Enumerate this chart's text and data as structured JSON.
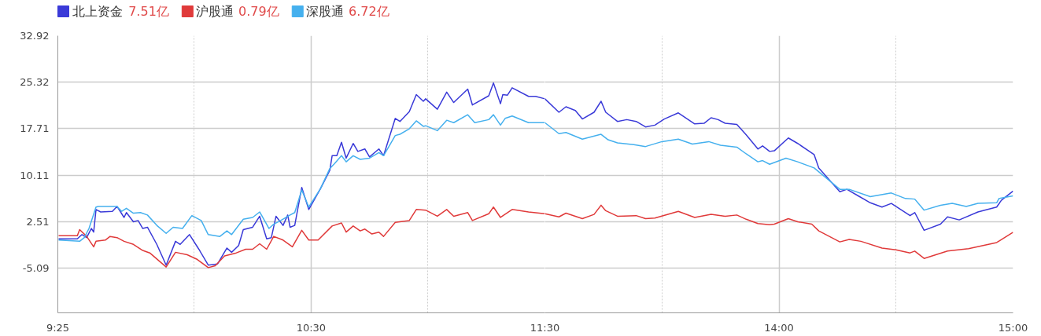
{
  "chart_data": [
    {
      "type": "line",
      "legend": "top left",
      "grid": true,
      "line_style": "solid",
      "annotations": [
        "7.51亿",
        "0.79亿",
        "6.72亿"
      ],
      "xlim": [
        9.4167,
        11.5
      ],
      "ylim": [
        -12.4,
        32.92
      ],
      "xticks": [
        {
          "value": 9.4167,
          "label": "9:25"
        },
        {
          "value": 10,
          "label": null
        },
        {
          "value": 10.5,
          "label": "10:30"
        },
        {
          "value": 11,
          "label": null
        },
        {
          "value": 11.5,
          "label": "11:30"
        }
      ],
      "yticks": [
        32.92,
        25.32,
        17.71,
        10.11,
        2.51,
        -5.09
      ],
      "series": [
        {
          "name": "北上资金",
          "color": "#3a3ad8",
          "x": [
            9.42,
            9.5,
            9.52,
            9.54,
            9.56,
            9.57,
            9.58,
            9.6,
            9.65,
            9.67,
            9.7,
            9.71,
            9.74,
            9.76,
            9.78,
            9.8,
            9.84,
            9.88,
            9.92,
            9.94,
            9.98,
            10.02,
            10.06,
            10.1,
            10.14,
            10.16,
            10.19,
            10.21,
            10.25,
            10.28,
            10.31,
            10.33,
            10.35,
            10.38,
            10.4,
            10.41,
            10.43,
            10.46,
            10.49,
            10.54,
            10.58,
            10.59,
            10.61,
            10.63,
            10.65,
            10.68,
            10.7,
            10.73,
            10.75,
            10.79,
            10.81,
            10.86,
            10.88,
            10.92,
            10.95,
            10.98,
            10.99,
            11.04,
            11.08,
            11.11,
            11.17,
            11.19,
            11.26,
            11.28,
            11.31,
            11.32,
            11.34,
            11.36,
            11.43,
            11.46,
            11.5
          ],
          "values": [
            -0.3,
            -0.3,
            0.4,
            -0.1,
            1.4,
            0.8,
            4.5,
            4.1,
            4.2,
            5.0,
            3.2,
            4.0,
            2.5,
            2.7,
            1.4,
            1.6,
            -1.2,
            -4.6,
            -0.7,
            -1.2,
            0.4,
            -2.0,
            -4.6,
            -4.4,
            -1.8,
            -2.5,
            -1.4,
            1.2,
            1.6,
            3.4,
            -0.3,
            -0.1,
            3.4,
            1.9,
            3.6,
            1.6,
            1.9,
            8.1,
            4.5,
            7.9,
            10.9,
            13.3,
            13.3,
            15.5,
            12.9,
            15.3,
            14.0,
            14.4,
            13.1,
            14.4,
            13.3,
            19.4,
            18.9,
            20.5,
            23.3,
            22.2,
            22.6,
            20.9,
            23.7,
            22.0,
            24.2,
            21.6,
            23.1,
            25.2,
            21.8,
            23.3,
            23.2,
            24.4,
            23.0,
            23.0,
            22.6
          ]
        },
        {
          "name": "沪股通",
          "color": "#e03a3a",
          "x": [
            9.42,
            9.5,
            9.51,
            9.54,
            9.57,
            9.58,
            9.62,
            9.64,
            9.67,
            9.7,
            9.74,
            9.78,
            9.81,
            9.88,
            9.92,
            9.97,
            10.01,
            10.06,
            10.09,
            10.13,
            10.18,
            10.22,
            10.25,
            10.28,
            10.31,
            10.34,
            10.38,
            10.42,
            10.46,
            10.49,
            10.53,
            10.59,
            10.63,
            10.65,
            10.68,
            10.71,
            10.73,
            10.76,
            10.79,
            10.81,
            10.86,
            10.92,
            10.95,
            10.99,
            11.04,
            11.08,
            11.11,
            11.17,
            11.19,
            11.26,
            11.28,
            11.31,
            11.36,
            11.43,
            11.5
          ],
          "values": [
            0.2,
            0.2,
            1.2,
            0.1,
            -1.6,
            -0.7,
            -0.5,
            0.1,
            -0.1,
            -0.7,
            -1.2,
            -2.2,
            -2.6,
            -4.9,
            -2.5,
            -2.9,
            -3.6,
            -5.0,
            -4.7,
            -3.1,
            -2.6,
            -2.0,
            -2.0,
            -1.1,
            -2.0,
            0.1,
            -0.5,
            -1.6,
            1.1,
            -0.5,
            -0.5,
            1.8,
            2.3,
            0.8,
            1.8,
            1.0,
            1.3,
            0.5,
            0.8,
            0.1,
            2.4,
            2.7,
            4.5,
            4.4,
            3.4,
            4.5,
            3.4,
            4.0,
            2.7,
            3.8,
            4.9,
            3.2,
            4.5,
            4.1,
            3.8
          ]
        },
        {
          "name": "深股通",
          "color": "#45b0ee",
          "x": [
            9.42,
            9.51,
            9.53,
            9.55,
            9.58,
            9.59,
            9.67,
            9.69,
            9.71,
            9.74,
            9.77,
            9.8,
            9.84,
            9.88,
            9.91,
            9.95,
            9.99,
            10.03,
            10.06,
            10.11,
            10.14,
            10.16,
            10.21,
            10.25,
            10.28,
            10.32,
            10.34,
            10.37,
            10.41,
            10.43,
            10.46,
            10.49,
            10.54,
            10.58,
            10.6,
            10.63,
            10.65,
            10.68,
            10.71,
            10.75,
            10.79,
            10.81,
            10.86,
            10.88,
            10.92,
            10.95,
            10.98,
            10.99,
            11.04,
            11.08,
            11.11,
            11.17,
            11.2,
            11.26,
            11.28,
            11.31,
            11.33,
            11.36,
            11.43,
            11.5
          ],
          "values": [
            -0.5,
            -0.7,
            -0.1,
            1.4,
            4.9,
            5.0,
            5.0,
            4.2,
            4.7,
            3.9,
            4.0,
            3.6,
            1.9,
            0.6,
            1.6,
            1.4,
            3.5,
            2.7,
            0.4,
            0.1,
            1.0,
            0.4,
            2.9,
            3.2,
            4.1,
            1.4,
            2.1,
            2.7,
            3.6,
            4.0,
            7.7,
            4.9,
            7.9,
            11.2,
            12.0,
            13.3,
            12.3,
            13.3,
            12.7,
            12.9,
            13.8,
            13.3,
            16.6,
            16.8,
            17.7,
            19.0,
            18.1,
            18.2,
            17.4,
            19.1,
            18.7,
            20.0,
            18.7,
            19.2,
            20.0,
            18.3,
            19.4,
            19.8,
            18.7,
            18.7
          ]
        }
      ]
    },
    {
      "type": "line",
      "grid": true,
      "line_style": "solid",
      "tick_labels": "x",
      "xlim": [
        13,
        15
      ],
      "ylim": [
        -12.4,
        32.92
      ],
      "xticks": [
        {
          "value": 13.5,
          "label": null
        },
        {
          "value": 14,
          "label": "14:00"
        },
        {
          "value": 14.5,
          "label": null
        },
        {
          "value": 15,
          "label": "15:00"
        }
      ],
      "yticks": [
        32.92,
        25.32,
        17.71,
        10.11,
        2.51,
        -5.09
      ],
      "series": [
        {
          "color": "#3a3ad8",
          "x": [
            13,
            13.06,
            13.09,
            13.13,
            13.16,
            13.21,
            13.24,
            13.26,
            13.31,
            13.35,
            13.39,
            13.43,
            13.47,
            13.51,
            13.57,
            13.64,
            13.68,
            13.71,
            13.74,
            13.77,
            13.82,
            13.86,
            13.91,
            13.93,
            13.96,
            13.98,
            14.04,
            14.08,
            14.15,
            14.17,
            14.26,
            14.29,
            14.34,
            14.39,
            14.44,
            14.48,
            14.56,
            14.58,
            14.62,
            14.69,
            14.72,
            14.77,
            14.85,
            14.93,
            14.95,
            15
          ],
          "values": [
            22.6,
            20.4,
            21.3,
            20.7,
            19.3,
            20.4,
            22.2,
            20.4,
            18.9,
            19.2,
            18.9,
            18.0,
            18.3,
            19.3,
            20.3,
            18.5,
            18.6,
            19.5,
            19.2,
            18.6,
            18.4,
            16.7,
            14.4,
            14.9,
            14.0,
            14.1,
            16.2,
            15.3,
            13.5,
            11.3,
            7.4,
            7.8,
            6.7,
            5.6,
            4.9,
            5.5,
            3.5,
            4.0,
            1.1,
            2.1,
            3.3,
            2.8,
            4.1,
            4.9,
            6.0,
            7.51
          ]
        },
        {
          "color": "#e03a3a",
          "x": [
            13,
            13.06,
            13.09,
            13.16,
            13.21,
            13.24,
            13.26,
            13.31,
            13.39,
            13.43,
            13.47,
            13.57,
            13.64,
            13.71,
            13.77,
            13.82,
            13.86,
            13.91,
            13.96,
            13.98,
            14.04,
            14.08,
            14.14,
            14.17,
            14.26,
            14.3,
            14.35,
            14.44,
            14.5,
            14.56,
            14.58,
            14.62,
            14.72,
            14.81,
            14.93,
            15
          ],
          "values": [
            3.8,
            3.3,
            3.9,
            3.0,
            3.7,
            5.2,
            4.3,
            3.4,
            3.5,
            3.0,
            3.1,
            4.2,
            3.2,
            3.7,
            3.4,
            3.6,
            2.9,
            2.2,
            2.0,
            2.1,
            3.0,
            2.5,
            2.1,
            1.0,
            -0.8,
            -0.4,
            -0.7,
            -1.8,
            -2.1,
            -2.6,
            -2.3,
            -3.5,
            -2.3,
            -1.9,
            -0.9,
            0.79
          ]
        },
        {
          "color": "#45b0ee",
          "x": [
            13,
            13.06,
            13.09,
            13.16,
            13.24,
            13.27,
            13.31,
            13.38,
            13.43,
            13.5,
            13.57,
            13.63,
            13.7,
            13.75,
            13.82,
            13.86,
            13.91,
            13.93,
            13.96,
            14.03,
            14.08,
            14.15,
            14.26,
            14.3,
            14.39,
            14.48,
            14.54,
            14.58,
            14.62,
            14.69,
            14.74,
            14.8,
            14.85,
            14.93,
            14.94,
            15
          ],
          "values": [
            18.7,
            16.9,
            17.1,
            16.0,
            16.8,
            15.9,
            15.4,
            15.1,
            14.8,
            15.6,
            16.0,
            15.2,
            15.6,
            15.0,
            14.7,
            13.6,
            12.3,
            12.5,
            11.9,
            12.9,
            12.3,
            11.3,
            7.8,
            7.8,
            6.6,
            7.2,
            6.3,
            6.2,
            4.4,
            5.2,
            5.5,
            5.0,
            5.5,
            5.6,
            6.3,
            6.72
          ]
        }
      ]
    }
  ]
}
